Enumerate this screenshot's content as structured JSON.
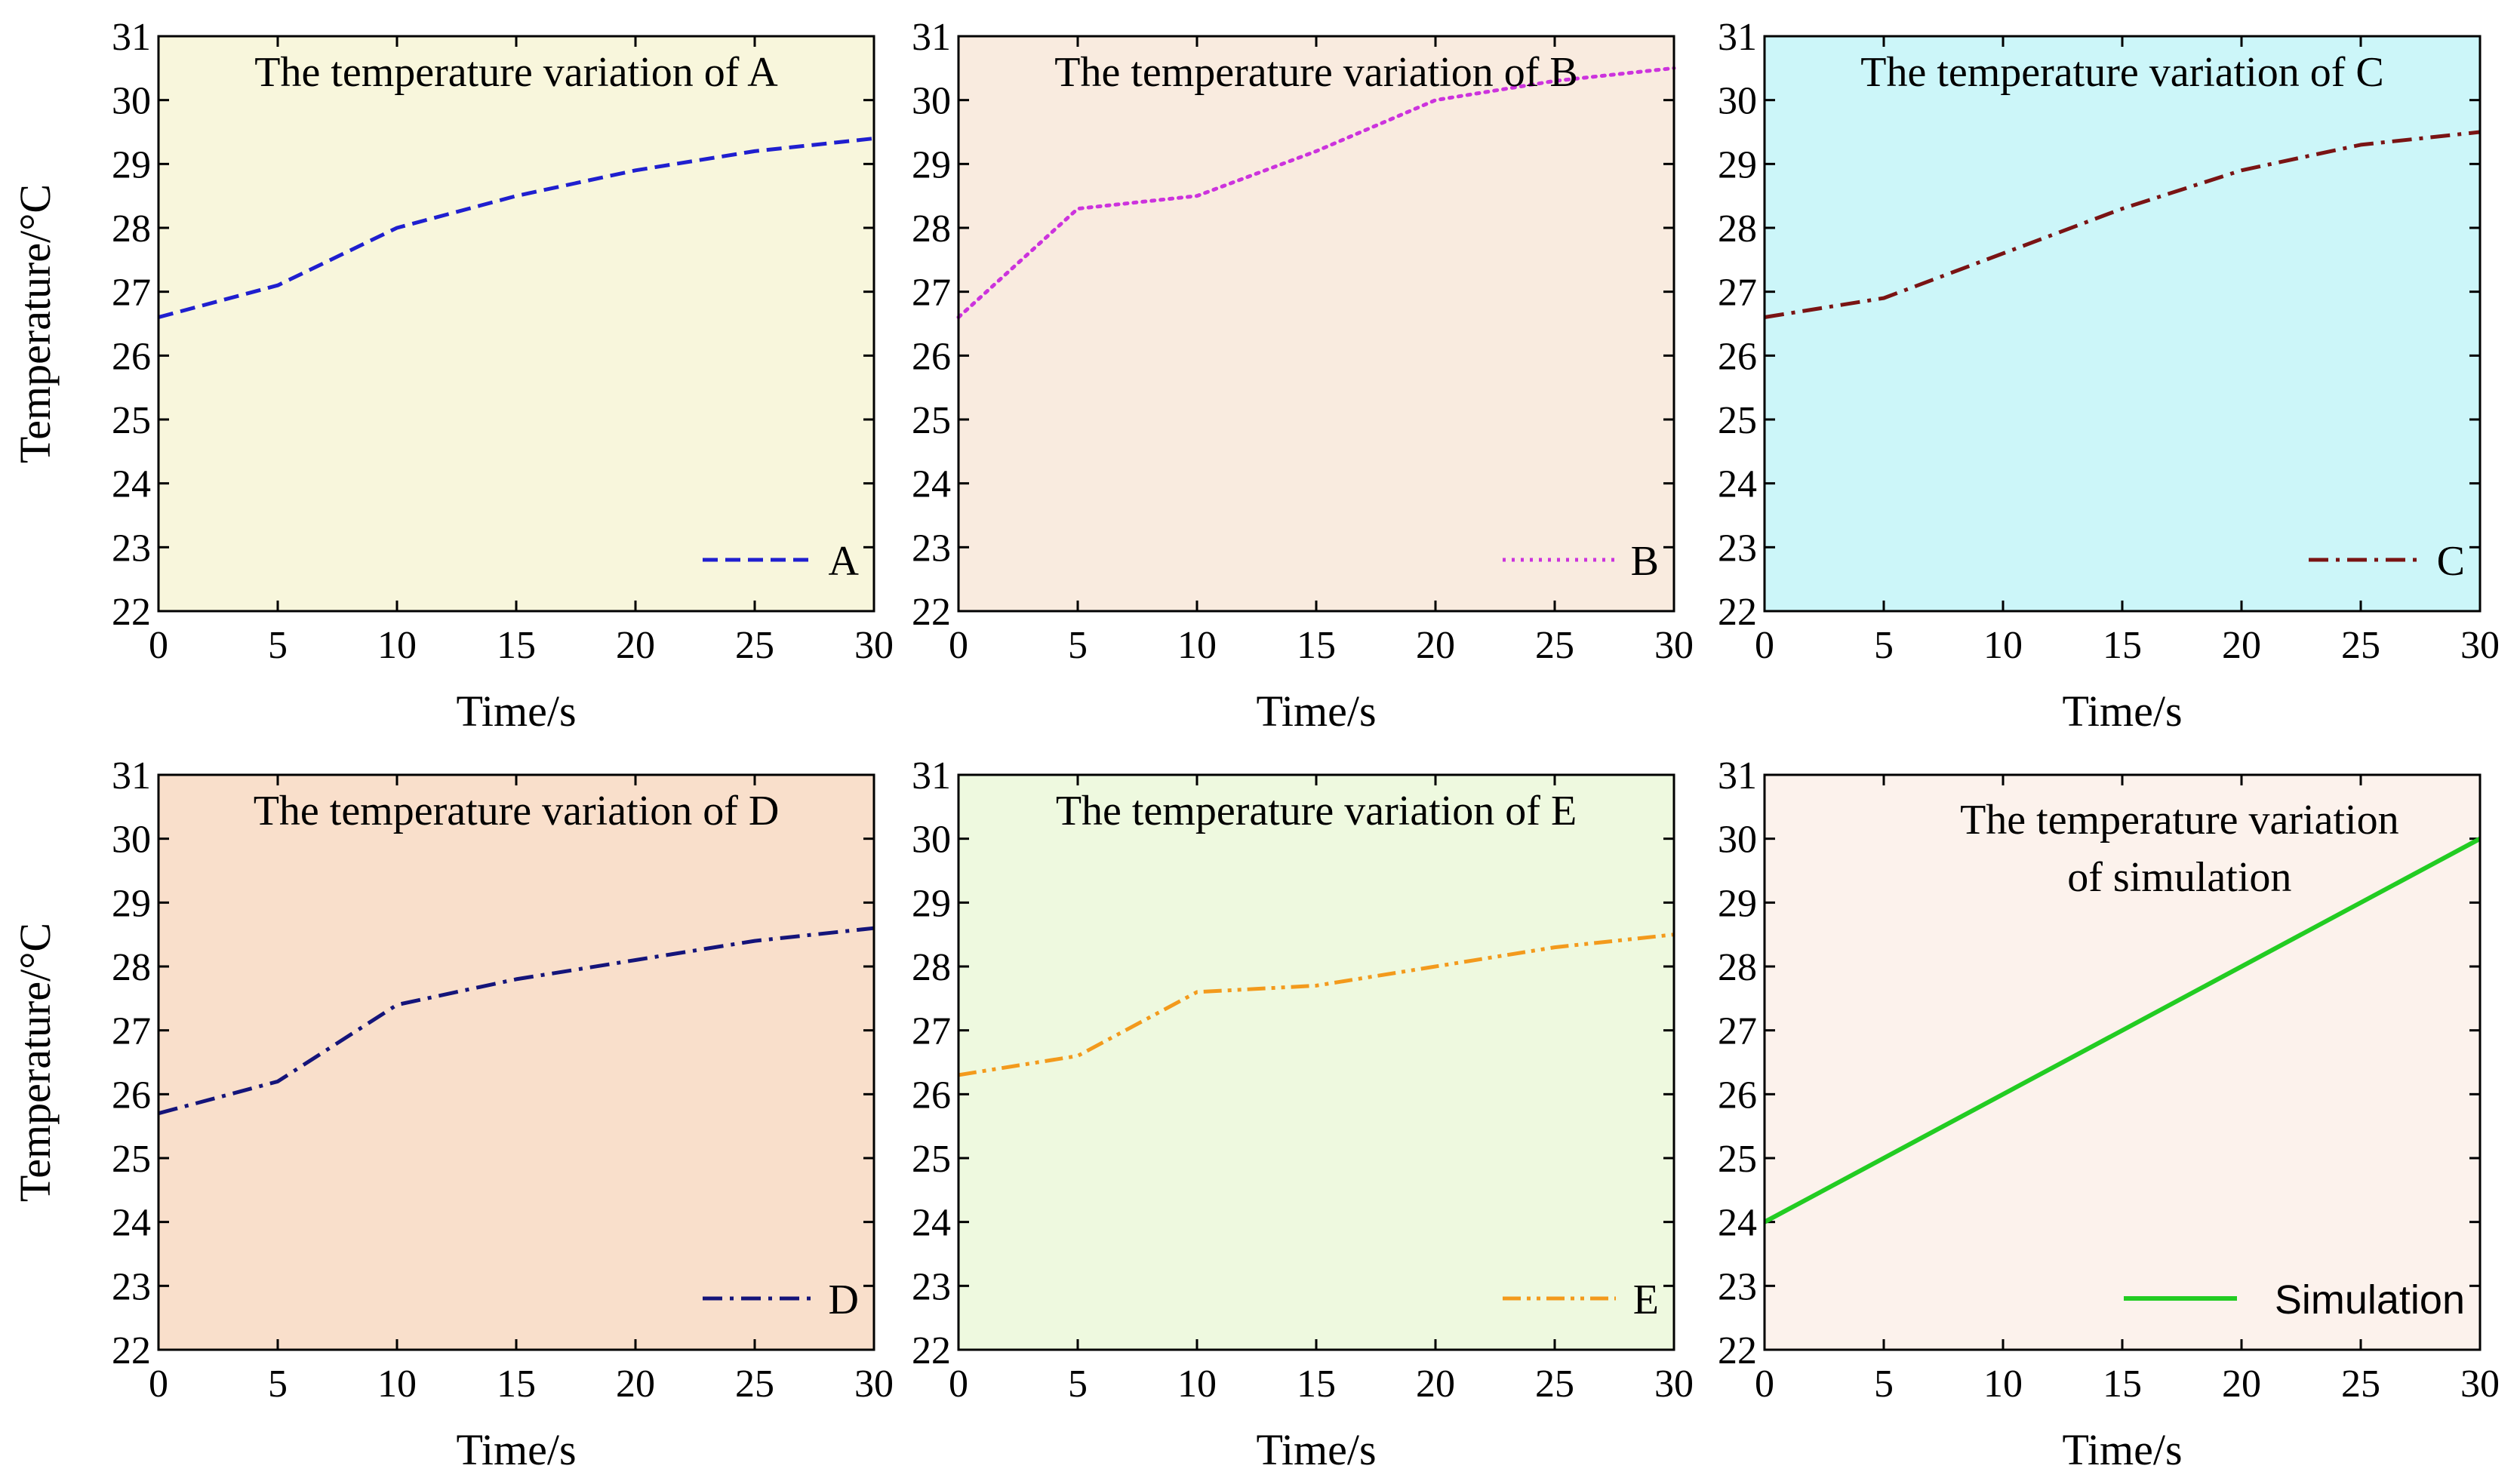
{
  "chart_data": [
    {
      "type": "line",
      "title": "The temperature variation of A",
      "xlabel": "Time/s",
      "ylabel": "Temperature/°C",
      "xlim": [
        0,
        30
      ],
      "ylim": [
        22,
        31
      ],
      "xticks": [
        "0",
        "5",
        "10",
        "15",
        "20",
        "25",
        "30"
      ],
      "yticks": [
        "22",
        "23",
        "24",
        "25",
        "26",
        "27",
        "28",
        "29",
        "30",
        "31"
      ],
      "legend_position": "bottom-right",
      "background": "#f8f6dc",
      "series": [
        {
          "name": "A",
          "color": "#1f1fcf",
          "style": "dashed",
          "x": [
            0,
            5,
            10,
            15,
            20,
            25,
            30
          ],
          "y": [
            26.6,
            27.1,
            28.0,
            28.5,
            28.9,
            29.2,
            29.4
          ]
        }
      ]
    },
    {
      "type": "line",
      "title": "The temperature variation of B",
      "xlabel": "Time/s",
      "ylabel": "",
      "xlim": [
        0,
        30
      ],
      "ylim": [
        22,
        31
      ],
      "xticks": [
        "0",
        "5",
        "10",
        "15",
        "20",
        "25",
        "30"
      ],
      "yticks": [
        "22",
        "23",
        "24",
        "25",
        "26",
        "27",
        "28",
        "29",
        "30",
        "31"
      ],
      "legend_position": "bottom-right",
      "background": "#f9ebdf",
      "series": [
        {
          "name": "B",
          "color": "#cc33dd",
          "style": "dotted",
          "x": [
            0,
            5,
            10,
            15,
            20,
            25,
            30
          ],
          "y": [
            26.6,
            28.3,
            28.5,
            29.2,
            30.0,
            30.3,
            30.5
          ]
        }
      ]
    },
    {
      "type": "line",
      "title": "The temperature variation of C",
      "xlabel": "Time/s",
      "ylabel": "",
      "xlim": [
        0,
        30
      ],
      "ylim": [
        22,
        31
      ],
      "xticks": [
        "0",
        "5",
        "10",
        "15",
        "20",
        "25",
        "30"
      ],
      "yticks": [
        "22",
        "23",
        "24",
        "25",
        "26",
        "27",
        "28",
        "29",
        "30",
        "31"
      ],
      "legend_position": "bottom-right",
      "background": "#ccf6f9",
      "series": [
        {
          "name": "C",
          "color": "#7a1414",
          "style": "dashdot",
          "x": [
            0,
            5,
            10,
            15,
            20,
            25,
            30
          ],
          "y": [
            26.6,
            26.9,
            27.6,
            28.3,
            28.9,
            29.3,
            29.5
          ]
        }
      ]
    },
    {
      "type": "line",
      "title": "The temperature variation of D",
      "xlabel": "Time/s",
      "ylabel": "Temperature/°C",
      "xlim": [
        0,
        30
      ],
      "ylim": [
        22,
        31
      ],
      "xticks": [
        "0",
        "5",
        "10",
        "15",
        "20",
        "25",
        "30"
      ],
      "yticks": [
        "22",
        "23",
        "24",
        "25",
        "26",
        "27",
        "28",
        "29",
        "30",
        "31"
      ],
      "legend_position": "bottom-right",
      "background": "#f9dfcb",
      "series": [
        {
          "name": "D",
          "color": "#14147a",
          "style": "dashdot",
          "x": [
            0,
            5,
            10,
            15,
            20,
            25,
            30
          ],
          "y": [
            25.7,
            26.2,
            27.4,
            27.8,
            28.1,
            28.4,
            28.6
          ]
        }
      ]
    },
    {
      "type": "line",
      "title": "The temperature variation of E",
      "xlabel": "Time/s",
      "ylabel": "",
      "xlim": [
        0,
        30
      ],
      "ylim": [
        22,
        31
      ],
      "xticks": [
        "0",
        "5",
        "10",
        "15",
        "20",
        "25",
        "30"
      ],
      "yticks": [
        "22",
        "23",
        "24",
        "25",
        "26",
        "27",
        "28",
        "29",
        "30",
        "31"
      ],
      "legend_position": "bottom-right",
      "background": "#eef9df",
      "series": [
        {
          "name": "E",
          "color": "#f39a1c",
          "style": "dashdotdot",
          "x": [
            0,
            5,
            10,
            15,
            20,
            25,
            30
          ],
          "y": [
            26.3,
            26.6,
            27.6,
            27.7,
            28.0,
            28.3,
            28.5
          ]
        }
      ]
    },
    {
      "type": "line",
      "title_lines": [
        "The temperature variation",
        "of simulation"
      ],
      "xlabel": "Time/s",
      "ylabel": "",
      "xlim": [
        0,
        30
      ],
      "ylim": [
        22,
        31
      ],
      "xticks": [
        "0",
        "5",
        "10",
        "15",
        "20",
        "25",
        "30"
      ],
      "yticks": [
        "22",
        "23",
        "24",
        "25",
        "26",
        "27",
        "28",
        "29",
        "30",
        "31"
      ],
      "legend_position": "bottom-right",
      "background": "#fcf2ec",
      "series": [
        {
          "name": "Simulation",
          "color": "#22cc22",
          "style": "solid",
          "x": [
            0,
            30
          ],
          "y": [
            24.0,
            30.0
          ]
        }
      ]
    }
  ]
}
